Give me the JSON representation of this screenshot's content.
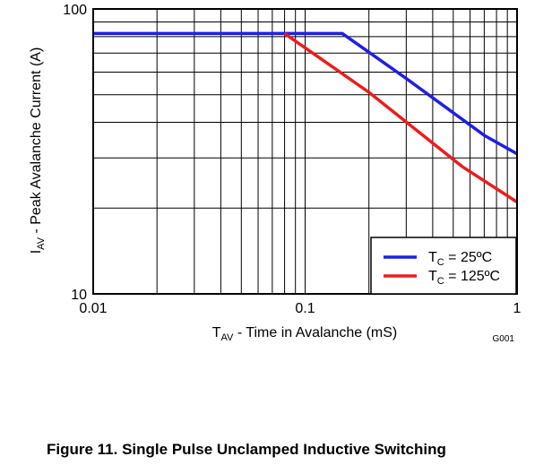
{
  "chart_data": {
    "type": "line",
    "x_scale": "log",
    "y_scale": "log",
    "xlim": [
      0.01,
      1
    ],
    "ylim": [
      10,
      100
    ],
    "grid": true,
    "legend_placement": "bottom-right",
    "xlabel": {
      "main": "T",
      "sub": "AV",
      "rest": " - Time in Avalanche (mS)"
    },
    "ylabel": {
      "main": "I",
      "sub": "AV",
      "rest": " - Peak Avalanche Current (A)"
    },
    "x_ticks": [
      {
        "value": 0.01,
        "label": "0.01"
      },
      {
        "value": 0.1,
        "label": "0.1"
      },
      {
        "value": 1,
        "label": "1"
      }
    ],
    "y_ticks": [
      {
        "value": 10,
        "label": "10"
      },
      {
        "value": 100,
        "label": "100"
      }
    ],
    "series": [
      {
        "main": "T",
        "sub": "C",
        "rest": " = 25ºC",
        "color": "#1f1fe6",
        "points": [
          [
            0.01,
            82
          ],
          [
            0.15,
            82
          ],
          [
            0.3,
            57
          ],
          [
            0.7,
            36
          ],
          [
            1,
            31
          ]
        ]
      },
      {
        "main": "T",
        "sub": "C",
        "rest": " = 125ºC",
        "color": "#ee1c1c",
        "points": [
          [
            0.08,
            82
          ],
          [
            0.2,
            51
          ],
          [
            0.55,
            28
          ],
          [
            1,
            21
          ]
        ]
      }
    ],
    "figure_code": "G001"
  },
  "caption": "Figure 11. Single Pulse Unclamped Inductive Switching"
}
